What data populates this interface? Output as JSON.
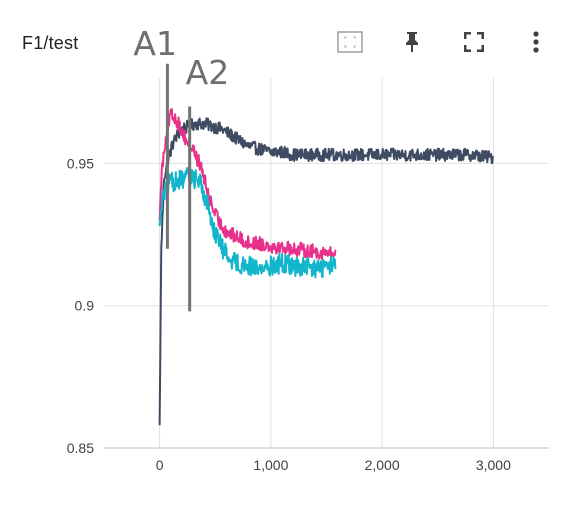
{
  "card": {
    "title": "F1/test"
  },
  "toolbar": {
    "items": [
      {
        "name": "fit-domain-icon",
        "label": ""
      },
      {
        "name": "pin-icon",
        "label": ""
      },
      {
        "name": "fullscreen-icon",
        "label": ""
      },
      {
        "name": "more-vert-icon",
        "label": ""
      }
    ]
  },
  "colors": {
    "navy": "#3f4b63",
    "magenta": "#e8318a",
    "cyan": "#12b5cb",
    "grid": "#e0e0e0",
    "annotation": "#737373"
  },
  "chart_data": {
    "type": "line",
    "title": "F1/test",
    "xlim": [
      -500,
      3500
    ],
    "ylim": [
      0.85,
      0.98
    ],
    "xticks": [
      0,
      1000,
      2000,
      3000
    ],
    "xtick_labels": [
      "0",
      "1,000",
      "2,000",
      "3,000"
    ],
    "yticks": [
      0.85,
      0.9,
      0.95
    ],
    "ytick_labels": [
      "0.85",
      "0.9",
      "0.95"
    ],
    "grid": true,
    "legend": "none",
    "series": [
      {
        "color": "#3f4b63",
        "noise": 0.0022,
        "x": [
          0,
          15,
          40,
          80,
          120,
          160,
          200,
          260,
          320,
          400,
          480,
          560,
          640,
          720,
          800,
          900,
          1000,
          1100,
          1200,
          1400,
          1600,
          1800,
          2000,
          2200,
          2400,
          2600,
          2800,
          3000
        ],
        "y": [
          0.858,
          0.92,
          0.945,
          0.952,
          0.957,
          0.96,
          0.962,
          0.963,
          0.964,
          0.964,
          0.963,
          0.962,
          0.96,
          0.958,
          0.956,
          0.955,
          0.954,
          0.954,
          0.953,
          0.953,
          0.953,
          0.953,
          0.953,
          0.953,
          0.953,
          0.953,
          0.953,
          0.952
        ]
      },
      {
        "color": "#e8318a",
        "noise": 0.0025,
        "x": [
          0,
          15,
          40,
          70,
          100,
          140,
          180,
          240,
          300,
          380,
          430,
          480,
          540,
          600,
          700,
          800,
          900,
          1000,
          1200,
          1400,
          1580
        ],
        "y": [
          0.93,
          0.945,
          0.955,
          0.963,
          0.967,
          0.966,
          0.963,
          0.958,
          0.955,
          0.948,
          0.94,
          0.934,
          0.929,
          0.926,
          0.924,
          0.922,
          0.922,
          0.921,
          0.92,
          0.919,
          0.918
        ]
      },
      {
        "color": "#12b5cb",
        "noise": 0.0035,
        "x": [
          0,
          15,
          40,
          70,
          100,
          140,
          180,
          240,
          300,
          360,
          420,
          480,
          540,
          600,
          700,
          800,
          900,
          1000,
          1100,
          1200,
          1400,
          1580
        ],
        "y": [
          0.928,
          0.935,
          0.94,
          0.942,
          0.943,
          0.944,
          0.944,
          0.945,
          0.945,
          0.944,
          0.937,
          0.928,
          0.922,
          0.918,
          0.915,
          0.914,
          0.913,
          0.914,
          0.915,
          0.914,
          0.913,
          0.914
        ]
      }
    ],
    "annotations": [
      {
        "label": "A1",
        "x": 70,
        "y_from": 0.92,
        "y_to": 0.985
      },
      {
        "label": "A2",
        "x": 270,
        "y_from": 0.898,
        "y_to": 0.97
      }
    ]
  }
}
